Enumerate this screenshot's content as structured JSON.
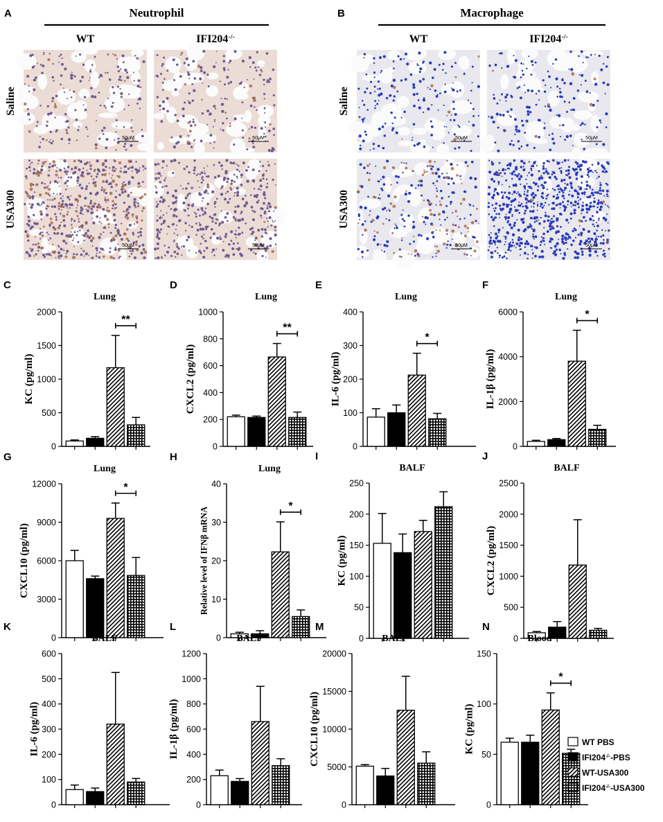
{
  "histology": {
    "A": {
      "letter": "A",
      "title": "Neutrophil",
      "columns": [
        "WT",
        "IFI204-/-"
      ],
      "rows": [
        "Saline",
        "USA300"
      ],
      "scalebar": "50μM"
    },
    "B": {
      "letter": "B",
      "title": "Macrophage",
      "columns": [
        "WT",
        "IFI204-/-"
      ],
      "rows": [
        "Saline",
        "USA300"
      ],
      "scalebar": "50μM"
    }
  },
  "legend": {
    "items": [
      "WT PBS",
      "IFI204-/--PBS",
      "WT-USA300",
      "IFI204-/--USA300"
    ],
    "patterns": [
      "open",
      "solid",
      "hatch",
      "grid"
    ]
  },
  "colors": {
    "bar_edge": "#000000",
    "solid": "#000000",
    "open": "#ffffff",
    "stain_brown": "#a86a4a",
    "stain_blue": "#2233bb"
  },
  "chart_data": [
    {
      "panel": "C",
      "type": "bar",
      "title": "Lung",
      "ylabel": "KC (pg/ml)",
      "ylim": [
        0,
        2000
      ],
      "yticks": [
        "0",
        "500",
        "1000",
        "1500",
        "2000"
      ],
      "values": [
        80,
        120,
        1170,
        320
      ],
      "errors": [
        15,
        25,
        480,
        110
      ],
      "sig": {
        "between": [
          2,
          3
        ],
        "label": "**"
      }
    },
    {
      "panel": "D",
      "type": "bar",
      "title": "Lung",
      "ylabel": "CXCL2 (pg/ml)",
      "ylim": [
        0,
        1000
      ],
      "yticks": [
        "0",
        "200",
        "400",
        "600",
        "800",
        "1000"
      ],
      "values": [
        220,
        215,
        665,
        215
      ],
      "errors": [
        12,
        10,
        100,
        40
      ],
      "sig": {
        "between": [
          2,
          3
        ],
        "label": "**"
      }
    },
    {
      "panel": "E",
      "type": "bar",
      "title": "Lung",
      "ylabel": "IL-6 (pg/ml)",
      "ylim": [
        0,
        400
      ],
      "yticks": [
        "0",
        "100",
        "200",
        "300",
        "400"
      ],
      "values": [
        87,
        100,
        212,
        82
      ],
      "errors": [
        25,
        23,
        65,
        16
      ],
      "sig": {
        "between": [
          2,
          3
        ],
        "label": "*"
      }
    },
    {
      "panel": "F",
      "type": "bar",
      "title": "Lung",
      "ylabel": "IL-1β (pg/ml)",
      "ylim": [
        0,
        6000
      ],
      "yticks": [
        "0",
        "2000",
        "4000",
        "6000"
      ],
      "values": [
        220,
        300,
        3800,
        760
      ],
      "errors": [
        50,
        50,
        1380,
        180
      ],
      "sig": {
        "between": [
          2,
          3
        ],
        "label": "*"
      }
    },
    {
      "panel": "G",
      "type": "bar",
      "title": "Lung",
      "ylabel": "CXCL10 (pg/ml)",
      "ylim": [
        0,
        12000
      ],
      "yticks": [
        "0",
        "3000",
        "6000",
        "9000",
        "12000"
      ],
      "values": [
        6000,
        4600,
        9300,
        4850
      ],
      "errors": [
        800,
        200,
        1200,
        1400
      ],
      "sig": {
        "between": [
          2,
          3
        ],
        "label": "*"
      }
    },
    {
      "panel": "H",
      "type": "bar",
      "title": "Lung",
      "ylabel": "Relative level of IFNβ mRNA",
      "ylim": [
        0,
        40
      ],
      "yticks": [
        "0",
        "10",
        "20",
        "30",
        "40"
      ],
      "values": [
        1.0,
        1.0,
        22.3,
        5.5
      ],
      "errors": [
        0.4,
        0.8,
        7.8,
        1.7
      ],
      "sig": {
        "between": [
          2,
          3
        ],
        "label": "*"
      }
    },
    {
      "panel": "I",
      "type": "bar",
      "title": "BALF",
      "ylabel": "KC (pg/ml)",
      "ylim": [
        0,
        250
      ],
      "yticks": [
        "0",
        "50",
        "100",
        "150",
        "200",
        "250"
      ],
      "values": [
        153,
        138,
        172,
        212
      ],
      "errors": [
        48,
        30,
        18,
        24
      ],
      "sig": null
    },
    {
      "panel": "J",
      "type": "bar",
      "title": "BALF",
      "ylabel": "CXCL2 (pg/ml)",
      "ylim": [
        0,
        2500
      ],
      "yticks": [
        "0",
        "500",
        "1000",
        "1500",
        "2000",
        "2500"
      ],
      "values": [
        90,
        180,
        1180,
        130
      ],
      "errors": [
        20,
        90,
        730,
        30
      ],
      "sig": null
    },
    {
      "panel": "K",
      "type": "bar",
      "title": "BALF",
      "ylabel": "IL-6 (pg/ml)",
      "ylim": [
        0,
        600
      ],
      "yticks": [
        "0",
        "100",
        "200",
        "300",
        "400",
        "500",
        "600"
      ],
      "values": [
        60,
        52,
        320,
        90
      ],
      "errors": [
        18,
        14,
        205,
        14
      ],
      "sig": null
    },
    {
      "panel": "L",
      "type": "bar",
      "title": "BALF",
      "ylabel": "IL-1β (pg/ml)",
      "ylim": [
        0,
        1200
      ],
      "yticks": [
        "0",
        "200",
        "400",
        "600",
        "800",
        "1000",
        "1200"
      ],
      "values": [
        230,
        185,
        660,
        310
      ],
      "errors": [
        45,
        22,
        280,
        55
      ],
      "sig": null
    },
    {
      "panel": "M",
      "type": "bar",
      "title": "BALF",
      "ylabel": "CXCL10 (pg/ml)",
      "ylim": [
        0,
        20000
      ],
      "yticks": [
        "0",
        "5000",
        "10000",
        "15000",
        "20000"
      ],
      "values": [
        5100,
        3800,
        12500,
        5500
      ],
      "errors": [
        200,
        1000,
        4500,
        1500
      ],
      "sig": null
    },
    {
      "panel": "N",
      "type": "bar",
      "title": "Blood",
      "ylabel": "KC (pg/ml)",
      "ylim": [
        0,
        150
      ],
      "yticks": [
        "0",
        "50",
        "100",
        "150"
      ],
      "values": [
        62,
        62,
        94,
        51
      ],
      "errors": [
        4,
        7,
        17,
        4
      ],
      "sig": {
        "between": [
          2,
          3
        ],
        "label": "*"
      }
    }
  ]
}
